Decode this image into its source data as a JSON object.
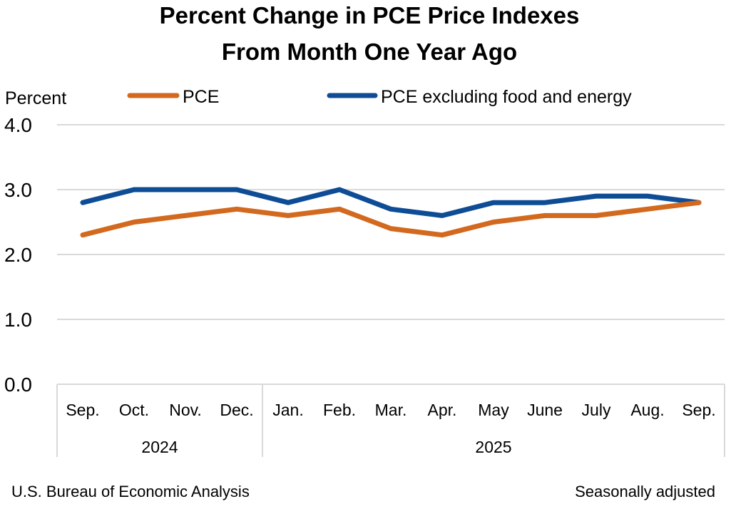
{
  "chart_data": {
    "type": "line",
    "title": "Percent Change in PCE Price Indexes",
    "subtitle": "From Month One Year Ago",
    "ylabel": "Percent",
    "ylim": [
      0,
      4
    ],
    "yticks": [
      "0.0",
      "1.0",
      "2.0",
      "3.0",
      "4.0"
    ],
    "categories": [
      "Sep.",
      "Oct.",
      "Nov.",
      "Dec.",
      "Jan.",
      "Feb.",
      "Mar.",
      "Apr.",
      "May",
      "June",
      "July",
      "Aug.",
      "Sep."
    ],
    "years": [
      {
        "label": "2024",
        "start": 0,
        "end": 3
      },
      {
        "label": "2025",
        "start": 4,
        "end": 12
      }
    ],
    "grid": true,
    "legend_position": "top",
    "series": [
      {
        "name": "PCE",
        "color": "#D2691E",
        "values": [
          2.3,
          2.5,
          2.6,
          2.7,
          2.6,
          2.7,
          2.4,
          2.3,
          2.5,
          2.6,
          2.6,
          2.7,
          2.8
        ]
      },
      {
        "name": "PCE excluding food and energy",
        "color": "#0F4C96",
        "values": [
          2.8,
          3.0,
          3.0,
          3.0,
          2.8,
          3.0,
          2.7,
          2.6,
          2.8,
          2.8,
          2.9,
          2.9,
          2.8
        ]
      }
    ],
    "source": "U.S. Bureau of Economic Analysis",
    "note": "Seasonally adjusted"
  }
}
